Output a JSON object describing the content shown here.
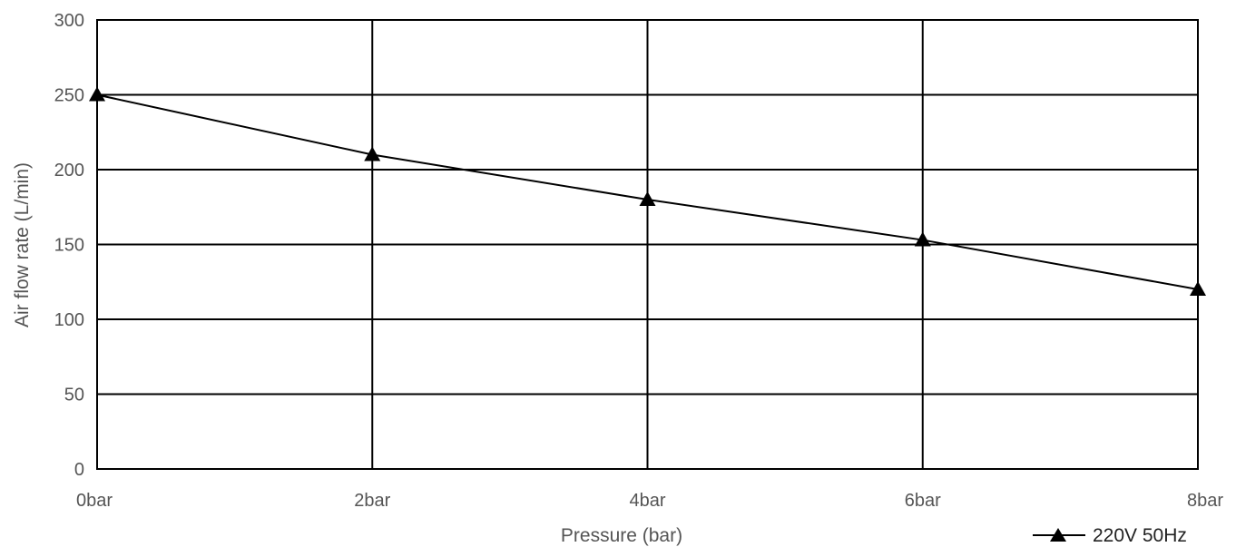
{
  "chart_data": {
    "type": "line",
    "title": "",
    "xlabel": "Pressure (bar)",
    "ylabel": "Air flow rate (L/min)",
    "categories": [
      "0bar",
      "2bar",
      "4bar",
      "6bar",
      "8bar"
    ],
    "x_values": [
      0,
      2,
      4,
      6,
      8
    ],
    "xlim": [
      0,
      8
    ],
    "ylim": [
      0,
      300
    ],
    "yticks": [
      0,
      50,
      100,
      150,
      200,
      250,
      300
    ],
    "grid": true,
    "legend_position": "bottom-right",
    "series": [
      {
        "name": "220V 50Hz",
        "values": [
          250,
          210,
          180,
          153,
          120
        ],
        "color": "#000000",
        "marker": "triangle"
      }
    ]
  }
}
